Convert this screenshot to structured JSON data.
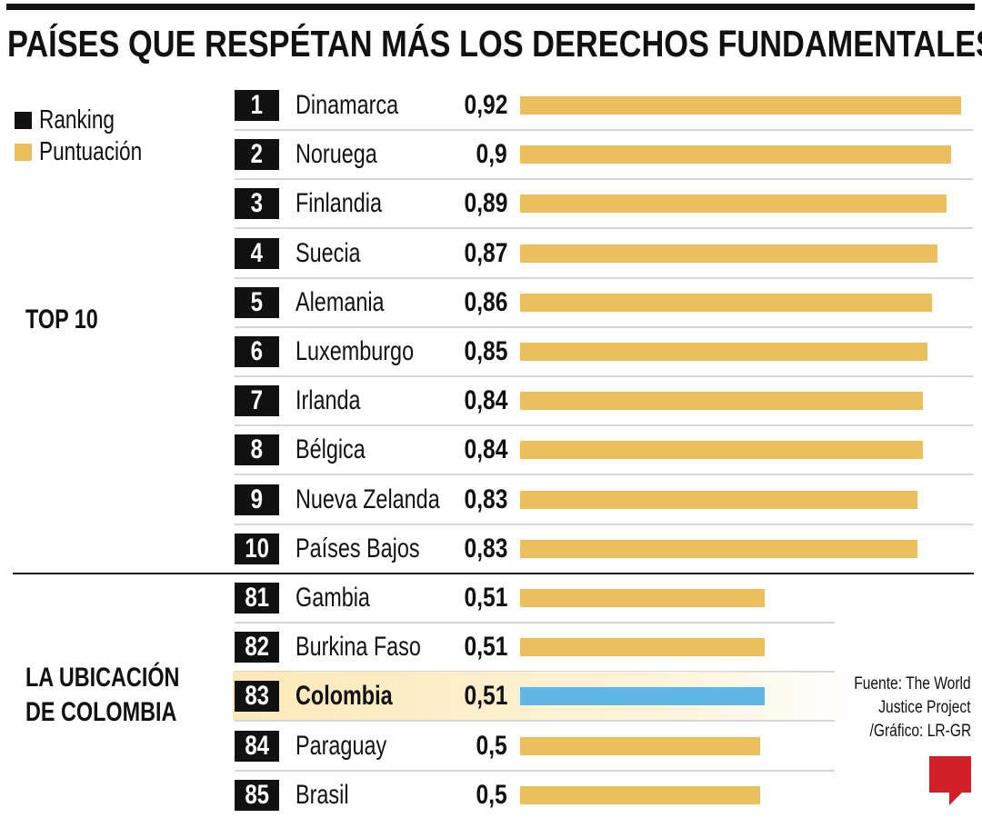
{
  "title": "PAÍSES QUE RESPÉTAN MÁS LOS DERECHOS FUNDAMENTALES",
  "legend": [
    {
      "label": "Ranking",
      "color": "#111111"
    },
    {
      "label": "Puntuación",
      "color": "#ebc05c"
    }
  ],
  "groups": {
    "top": "TOP 10",
    "colombia_line1": "LA UBICACIÓN",
    "colombia_line2": "DE COLOMBIA"
  },
  "source": {
    "line1": "Fuente: The World",
    "line2": "Justice Project",
    "line3": "/Gráfico: LR-GR"
  },
  "logo": "LR",
  "colors": {
    "bar": "#ebc05c",
    "highlight_bar": "#62b6e6"
  },
  "chart_data": {
    "type": "bar",
    "orientation": "horizontal",
    "xlim": [
      0,
      1
    ],
    "grid": false,
    "rows": [
      {
        "rank": "1",
        "country": "Dinamarca",
        "label": "0,92",
        "value": 0.92
      },
      {
        "rank": "2",
        "country": "Noruega",
        "label": "0,9",
        "value": 0.9
      },
      {
        "rank": "3",
        "country": "Finlandia",
        "label": "0,89",
        "value": 0.89
      },
      {
        "rank": "4",
        "country": "Suecia",
        "label": "0,87",
        "value": 0.87
      },
      {
        "rank": "5",
        "country": "Alemania",
        "label": "0,86",
        "value": 0.86
      },
      {
        "rank": "6",
        "country": "Luxemburgo",
        "label": "0,85",
        "value": 0.85
      },
      {
        "rank": "7",
        "country": "Irlanda",
        "label": "0,84",
        "value": 0.84
      },
      {
        "rank": "8",
        "country": "Bélgica",
        "label": "0,84",
        "value": 0.84
      },
      {
        "rank": "9",
        "country": "Nueva Zelanda",
        "label": "0,83",
        "value": 0.83
      },
      {
        "rank": "10",
        "country": "Países Bajos",
        "label": "0,83",
        "value": 0.83
      },
      {
        "rank": "81",
        "country": "Gambia",
        "label": "0,51",
        "value": 0.51
      },
      {
        "rank": "82",
        "country": "Burkina Faso",
        "label": "0,51",
        "value": 0.51
      },
      {
        "rank": "83",
        "country": "Colombia",
        "label": "0,51",
        "value": 0.51,
        "highlight": true
      },
      {
        "rank": "84",
        "country": "Paraguay",
        "label": "0,5",
        "value": 0.5
      },
      {
        "rank": "85",
        "country": "Brasil",
        "label": "0,5",
        "value": 0.5
      }
    ]
  }
}
